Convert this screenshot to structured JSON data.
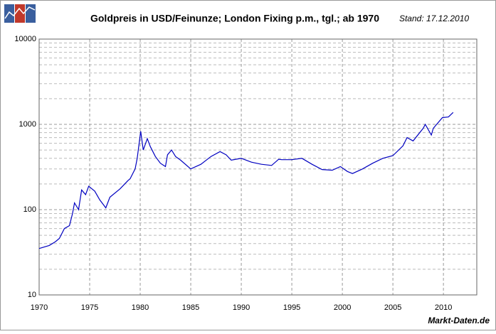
{
  "chart_data": {
    "type": "line",
    "title": "Goldpreis in USD/Feinunze; London Fixing p.m., tgl.; ab 1970",
    "subtitle": "Stand: 17.12.2010",
    "source": "Markt-Daten.de",
    "x": [
      1970,
      1971,
      1971.6,
      1972,
      1972.5,
      1973,
      1973.3,
      1973.5,
      1973.9,
      1974.2,
      1974.6,
      1974.9,
      1975.5,
      1976,
      1976.6,
      1977,
      1978,
      1978.8,
      1979,
      1979.5,
      1979.7,
      1980.05,
      1980.3,
      1980.7,
      1981,
      1981.5,
      1982,
      1982.5,
      1982.7,
      1983.1,
      1983.5,
      1984,
      1985,
      1986,
      1987,
      1987.9,
      1988.5,
      1989,
      1990,
      1991,
      1992,
      1993,
      1993.7,
      1994,
      1995,
      1996,
      1997,
      1998,
      1999,
      1999.8,
      2000.5,
      2001,
      2002,
      2003,
      2004,
      2005,
      2006,
      2006.4,
      2007,
      2008,
      2008.2,
      2008.8,
      2009,
      2009.9,
      2010.5,
      2010.96
    ],
    "values": [
      35,
      38,
      42,
      46,
      60,
      65,
      90,
      120,
      100,
      170,
      150,
      188,
      165,
      130,
      105,
      140,
      175,
      220,
      230,
      300,
      400,
      830,
      500,
      680,
      550,
      420,
      350,
      320,
      440,
      500,
      420,
      380,
      300,
      340,
      420,
      480,
      440,
      380,
      400,
      360,
      340,
      330,
      390,
      385,
      385,
      400,
      340,
      295,
      290,
      320,
      280,
      265,
      300,
      350,
      400,
      430,
      560,
      700,
      640,
      900,
      1000,
      750,
      900,
      1200,
      1220,
      1380
    ],
    "color": "#0000c0",
    "xlim": [
      1970,
      2013.3
    ],
    "xticks": [
      1970,
      1975,
      1980,
      1985,
      1990,
      1995,
      2000,
      2005,
      2010
    ],
    "ylim": [
      10,
      10000
    ],
    "yticks": [
      10,
      100,
      1000,
      10000
    ],
    "y_minor_grid": [
      20,
      30,
      40,
      50,
      60,
      70,
      80,
      90,
      200,
      300,
      400,
      500,
      600,
      700,
      800,
      900,
      2000,
      3000,
      4000,
      5000,
      6000,
      7000,
      8000,
      9000
    ],
    "log_y": true,
    "grid": true
  }
}
